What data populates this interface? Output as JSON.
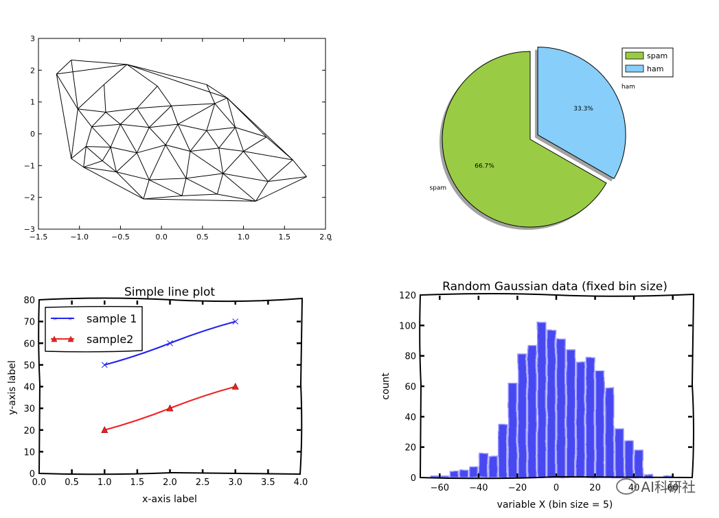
{
  "chart_data": [
    {
      "type": "triangulation",
      "xlim": [
        -1.5,
        2.0
      ],
      "ylim": [
        -3,
        3
      ],
      "xticks": [
        -1.5,
        -1.0,
        -0.5,
        0.0,
        0.5,
        1.0,
        1.5,
        2.0
      ],
      "xtick_labels": [
        "−1.5",
        "−1.0",
        "−0.5",
        "0.0",
        "0.5",
        "1.0",
        "1.5",
        "2.0"
      ],
      "yticks": [
        -3,
        -2,
        -1,
        0,
        1,
        2,
        3
      ],
      "ytick_labels": [
        "−3",
        "−2",
        "−1",
        "0",
        "1",
        "2",
        "3"
      ],
      "points": [
        [
          -1.28,
          1.88
        ],
        [
          -1.1,
          2.32
        ],
        [
          -0.42,
          2.18
        ],
        [
          0.8,
          1.13
        ],
        [
          -1.02,
          0.78
        ],
        [
          -0.68,
          0.68
        ],
        [
          -0.3,
          0.8
        ],
        [
          0.12,
          0.88
        ],
        [
          0.65,
          0.95
        ],
        [
          -0.85,
          0.22
        ],
        [
          -0.5,
          0.3
        ],
        [
          -0.15,
          0.2
        ],
        [
          0.2,
          0.3
        ],
        [
          0.55,
          0.1
        ],
        [
          0.9,
          0.2
        ],
        [
          1.28,
          -0.1
        ],
        [
          -1.1,
          -0.78
        ],
        [
          -0.92,
          -0.4
        ],
        [
          -0.62,
          -0.42
        ],
        [
          -0.3,
          -0.6
        ],
        [
          0.05,
          -0.35
        ],
        [
          0.35,
          -0.55
        ],
        [
          0.7,
          -0.45
        ],
        [
          1.0,
          -0.55
        ],
        [
          1.6,
          -0.82
        ],
        [
          -0.95,
          -1.05
        ],
        [
          -0.55,
          -1.2
        ],
        [
          -0.15,
          -1.45
        ],
        [
          0.3,
          -1.4
        ],
        [
          0.75,
          -1.25
        ],
        [
          1.3,
          -1.5
        ],
        [
          1.77,
          -1.35
        ],
        [
          -0.22,
          -2.05
        ],
        [
          0.25,
          -1.95
        ],
        [
          0.68,
          -1.9
        ],
        [
          1.15,
          -2.12
        ],
        [
          -0.72,
          -0.85
        ],
        [
          0.55,
          1.55
        ],
        [
          -0.05,
          1.5
        ],
        [
          -0.7,
          1.55
        ]
      ],
      "edges": [
        [
          0,
          1
        ],
        [
          1,
          2
        ],
        [
          2,
          3
        ],
        [
          0,
          2
        ],
        [
          0,
          4
        ],
        [
          1,
          4
        ],
        [
          2,
          39
        ],
        [
          39,
          4
        ],
        [
          39,
          5
        ],
        [
          2,
          38
        ],
        [
          38,
          6
        ],
        [
          38,
          7
        ],
        [
          2,
          37
        ],
        [
          37,
          3
        ],
        [
          37,
          8
        ],
        [
          3,
          8
        ],
        [
          4,
          5
        ],
        [
          5,
          6
        ],
        [
          6,
          7
        ],
        [
          7,
          8
        ],
        [
          4,
          9
        ],
        [
          5,
          9
        ],
        [
          5,
          10
        ],
        [
          6,
          10
        ],
        [
          6,
          11
        ],
        [
          7,
          11
        ],
        [
          7,
          12
        ],
        [
          8,
          12
        ],
        [
          8,
          13
        ],
        [
          8,
          14
        ],
        [
          3,
          14
        ],
        [
          3,
          15
        ],
        [
          9,
          10
        ],
        [
          10,
          11
        ],
        [
          11,
          12
        ],
        [
          12,
          13
        ],
        [
          13,
          14
        ],
        [
          14,
          15
        ],
        [
          4,
          16
        ],
        [
          0,
          16
        ],
        [
          9,
          17
        ],
        [
          16,
          17
        ],
        [
          9,
          18
        ],
        [
          10,
          18
        ],
        [
          17,
          18
        ],
        [
          10,
          19
        ],
        [
          11,
          19
        ],
        [
          18,
          19
        ],
        [
          11,
          20
        ],
        [
          12,
          20
        ],
        [
          19,
          20
        ],
        [
          12,
          21
        ],
        [
          13,
          21
        ],
        [
          20,
          21
        ],
        [
          13,
          22
        ],
        [
          14,
          22
        ],
        [
          21,
          22
        ],
        [
          14,
          23
        ],
        [
          15,
          23
        ],
        [
          22,
          23
        ],
        [
          15,
          24
        ],
        [
          23,
          24
        ],
        [
          16,
          25
        ],
        [
          17,
          25
        ],
        [
          17,
          36
        ],
        [
          18,
          36
        ],
        [
          25,
          36
        ],
        [
          36,
          26
        ],
        [
          25,
          26
        ],
        [
          19,
          26
        ],
        [
          19,
          27
        ],
        [
          26,
          27
        ],
        [
          20,
          27
        ],
        [
          20,
          28
        ],
        [
          21,
          28
        ],
        [
          27,
          28
        ],
        [
          21,
          29
        ],
        [
          22,
          29
        ],
        [
          28,
          29
        ],
        [
          23,
          29
        ],
        [
          23,
          30
        ],
        [
          24,
          30
        ],
        [
          29,
          30
        ],
        [
          24,
          31
        ],
        [
          30,
          31
        ],
        [
          26,
          32
        ],
        [
          27,
          32
        ],
        [
          27,
          33
        ],
        [
          28,
          33
        ],
        [
          32,
          33
        ],
        [
          28,
          34
        ],
        [
          29,
          34
        ],
        [
          33,
          34
        ],
        [
          29,
          35
        ],
        [
          30,
          35
        ],
        [
          34,
          35
        ],
        [
          31,
          35
        ],
        [
          32,
          35
        ],
        [
          25,
          32
        ],
        [
          18,
          26
        ],
        [
          3,
          24
        ]
      ]
    },
    {
      "type": "pie",
      "labels": [
        "spam",
        "ham"
      ],
      "values": [
        66.7,
        33.3
      ],
      "pct_labels": [
        "66.7%",
        "33.3%"
      ],
      "explode": [
        0,
        0.1
      ],
      "shadow": true,
      "colors": [
        "#99cc44",
        "#87cefa"
      ],
      "legend": [
        "spam",
        "ham"
      ],
      "legend_position": "upper right"
    },
    {
      "type": "line",
      "title": "Simple line plot",
      "xlabel": "x-axis label",
      "ylabel": "y-axis label",
      "xlim": [
        0,
        4
      ],
      "ylim": [
        0,
        80
      ],
      "xticks": [
        0.0,
        0.5,
        1.0,
        1.5,
        2.0,
        2.5,
        3.0,
        3.5,
        4.0
      ],
      "xtick_labels": [
        "0.0",
        "0.5",
        "1.0",
        "1.5",
        "2.0",
        "2.5",
        "3.0",
        "3.5",
        "4.0"
      ],
      "yticks": [
        0,
        10,
        20,
        30,
        40,
        50,
        60,
        70,
        80
      ],
      "ytick_labels": [
        "0",
        "10",
        "20",
        "30",
        "40",
        "50",
        "60",
        "70",
        "80"
      ],
      "series": [
        {
          "name": "sample 1",
          "x": [
            1,
            2,
            3
          ],
          "y": [
            50,
            60,
            70
          ],
          "color": "#2222ee",
          "marker": "x"
        },
        {
          "name": "sample2",
          "x": [
            1,
            2,
            3
          ],
          "y": [
            20,
            30,
            40
          ],
          "color": "#ee2222",
          "marker": "triangle"
        }
      ],
      "legend_position": "upper left"
    },
    {
      "type": "bar",
      "title": "Random Gaussian data (fixed bin size)",
      "xlabel": "variable X (bin size = 5)",
      "ylabel": "count",
      "xlim": [
        -70,
        70
      ],
      "ylim": [
        0,
        120
      ],
      "xticks": [
        -60,
        -40,
        -20,
        0,
        20,
        40,
        60
      ],
      "xtick_labels": [
        "−60",
        "−40",
        "−20",
        "0",
        "20",
        "40",
        "60"
      ],
      "yticks": [
        0,
        20,
        40,
        60,
        80,
        100,
        120
      ],
      "ytick_labels": [
        "0",
        "20",
        "40",
        "60",
        "80",
        "100",
        "120"
      ],
      "bin_edges": [
        -65,
        -60,
        -55,
        -50,
        -45,
        -40,
        -35,
        -30,
        -25,
        -20,
        -15,
        -10,
        -5,
        0,
        5,
        10,
        15,
        20,
        25,
        30,
        35,
        40,
        45,
        50,
        55,
        60,
        65
      ],
      "values": [
        1,
        1,
        4,
        5,
        7,
        16,
        14,
        35,
        62,
        81,
        87,
        102,
        97,
        91,
        84,
        76,
        79,
        70,
        59,
        32,
        24,
        18,
        2,
        0,
        1,
        0
      ],
      "color": "#2222ee"
    }
  ],
  "watermark": {
    "text": "AI科研社"
  }
}
